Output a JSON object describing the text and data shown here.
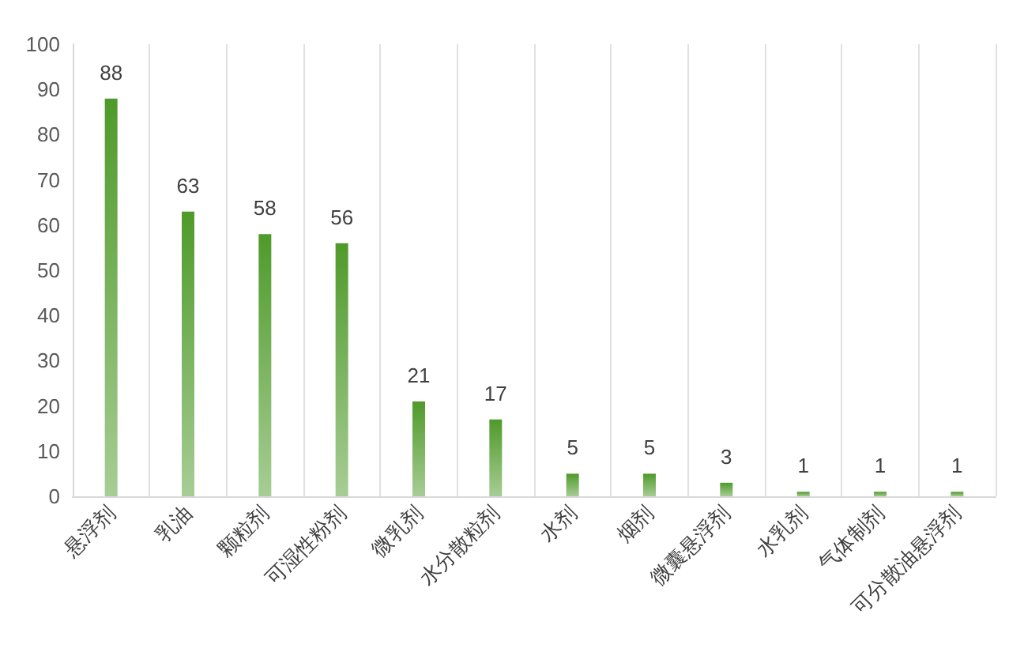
{
  "chart_data": {
    "type": "bar",
    "categories": [
      "悬浮剂",
      "乳油",
      "颗粒剂",
      "可湿性粉剂",
      "微乳剂",
      "水分散粒剂",
      "水剂",
      "烟剂",
      "微囊悬浮剂",
      "水乳剂",
      "气体制剂",
      "可分散油悬浮剂"
    ],
    "values": [
      88,
      63,
      58,
      56,
      21,
      17,
      5,
      5,
      3,
      1,
      1,
      1
    ],
    "color": "#4f9a2a",
    "ylim": [
      0,
      100
    ],
    "yticks": [
      0,
      10,
      20,
      30,
      40,
      50,
      60,
      70,
      80,
      90,
      100
    ],
    "grid": "x",
    "data_labels": true
  }
}
